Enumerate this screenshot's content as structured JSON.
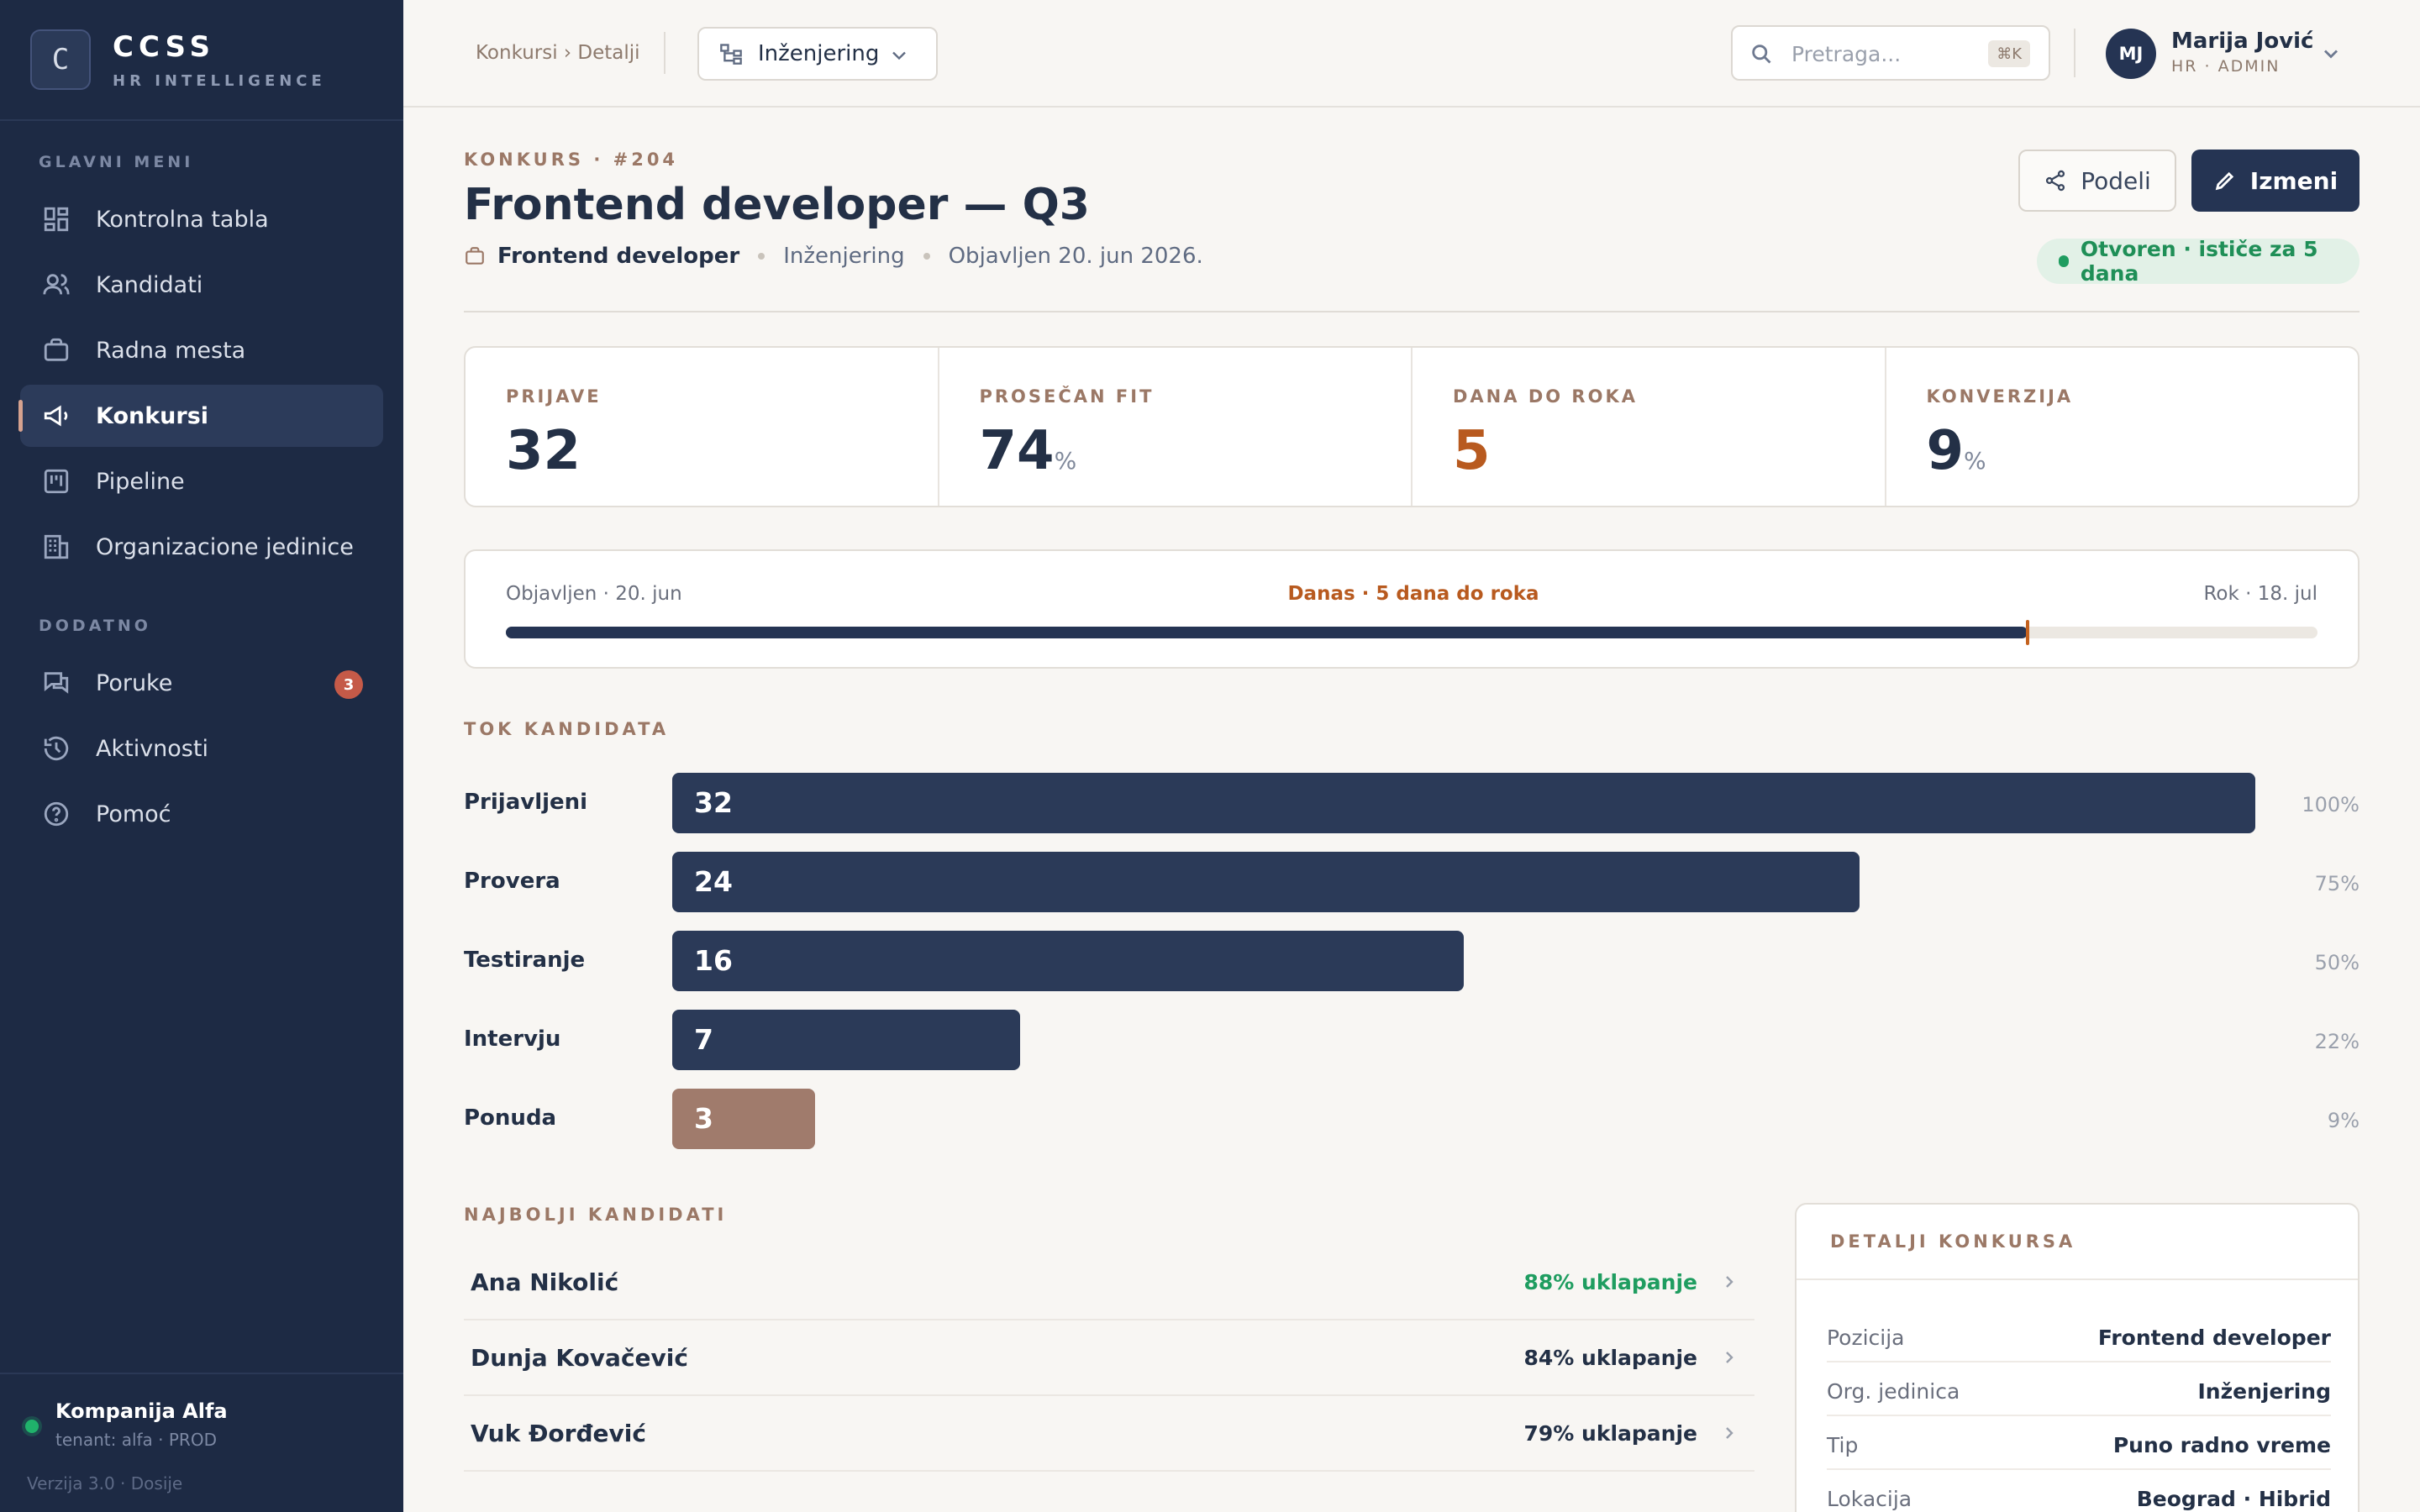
{
  "sidebar": {
    "logo_letter": "C",
    "brand_name": "CCSS",
    "brand_sub": "HR INTELLIGENCE",
    "section_main": "GLAVNI MENI",
    "section_extra": "DODATNO",
    "items": [
      {
        "label": "Kontrolna tabla",
        "icon": "dashboard-icon"
      },
      {
        "label": "Kandidati",
        "icon": "users-icon"
      },
      {
        "label": "Radna mesta",
        "icon": "briefcase-icon"
      },
      {
        "label": "Konkursi",
        "icon": "megaphone-icon",
        "active": true
      },
      {
        "label": "Pipeline",
        "icon": "kanban-icon"
      },
      {
        "label": "Organizacione jedinice",
        "icon": "building-icon"
      },
      {
        "label": "Poruke",
        "icon": "messages-icon",
        "badge": "3"
      },
      {
        "label": "Aktivnosti",
        "icon": "history-icon"
      },
      {
        "label": "Pomoć",
        "icon": "help-icon"
      }
    ],
    "tenant": {
      "name": "Kompanija Alfa",
      "sub": "tenant: alfa · PROD",
      "status_color": "#20b26b"
    },
    "version": "Verzija 3.0 · Dosije"
  },
  "topbar": {
    "breadcrumb": "Konkursi › Detalji",
    "department": "Inženjering",
    "search_placeholder": "Pretraga...",
    "shortcut": "⌘K",
    "user": {
      "initials": "MJ",
      "name": "Marija Jović",
      "role": "HR · ADMIN"
    }
  },
  "header": {
    "eyebrow": "KONKURS · #204",
    "title": "Frontend developer — Q3",
    "position": "Frontend developer",
    "department": "Inženjering",
    "published": "Objavljen 20. jun 2026.",
    "share_label": "Podeli",
    "edit_label": "Izmeni",
    "status": "Otvoren · ističe za 5 dana"
  },
  "kpis": [
    {
      "label": "PRIJAVE",
      "value": "32",
      "unit": ""
    },
    {
      "label": "PROSEČAN FIT",
      "value": "74",
      "unit": "%"
    },
    {
      "label": "DANA DO ROKA",
      "value": "5",
      "unit": ""
    },
    {
      "label": "KONVERZIJA",
      "value": "9",
      "unit": "%"
    }
  ],
  "timeline": {
    "start": "Objavljen · 20. jun",
    "today": "Danas · 5 dana do roka",
    "end": "Rok · 18. jul",
    "progress": 0.84
  },
  "funnel": {
    "title": "TOK KANDIDATA",
    "stages": [
      {
        "label": "Prijavljeni",
        "count": "32",
        "pct": "100%",
        "fraction": 1.0
      },
      {
        "label": "Provera",
        "count": "24",
        "pct": "75%",
        "fraction": 0.75
      },
      {
        "label": "Testiranje",
        "count": "16",
        "pct": "50%",
        "fraction": 0.5
      },
      {
        "label": "Intervju",
        "count": "7",
        "pct": "22%",
        "fraction": 0.22
      },
      {
        "label": "Ponuda",
        "count": "3",
        "pct": "9%",
        "fraction": 0.09
      }
    ]
  },
  "top_candidates": {
    "title": "NAJBOLJI KANDIDATI",
    "items": [
      {
        "name": "Ana Nikolić",
        "match": "88% uklapanje"
      },
      {
        "name": "Dunja Kovačević",
        "match": "84% uklapanje"
      },
      {
        "name": "Vuk Đorđević",
        "match": "79% uklapanje"
      }
    ]
  },
  "details": {
    "title": "DETALJI KONKURSA",
    "rows": [
      {
        "key": "Pozicija",
        "value": "Frontend developer"
      },
      {
        "key": "Org. jedinica",
        "value": "Inženjering"
      },
      {
        "key": "Tip",
        "value": "Puno radno vreme"
      },
      {
        "key": "Lokacija",
        "value": "Beograd · Hibrid"
      }
    ]
  },
  "colors": {
    "accent": "#253453",
    "warning": "#b85a1f",
    "success": "#1f9d60",
    "brand_brown": "#9b7866"
  }
}
